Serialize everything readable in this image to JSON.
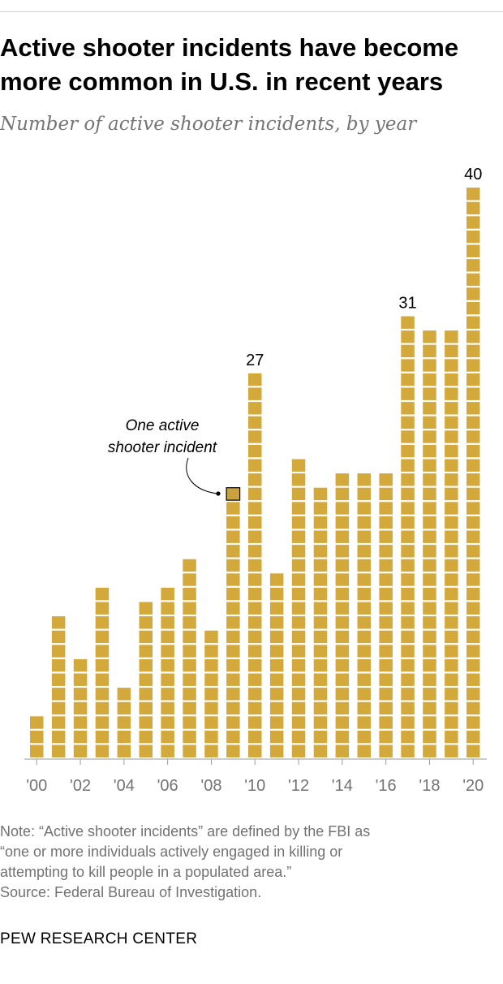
{
  "title_lines": [
    "Active shooter incidents have become",
    "more common in U.S. in recent years"
  ],
  "subtitle": "Number of active shooter incidents, by year",
  "chart_data": {
    "type": "bar",
    "categories": [
      "2000",
      "2001",
      "2002",
      "2003",
      "2004",
      "2005",
      "2006",
      "2007",
      "2008",
      "2009",
      "2010",
      "2011",
      "2012",
      "2013",
      "2014",
      "2015",
      "2016",
      "2017",
      "2018",
      "2019",
      "2020"
    ],
    "tick_labels": [
      "'00",
      "'02",
      "'04",
      "'06",
      "'08",
      "'10",
      "'12",
      "'14",
      "'16",
      "'18",
      "'20"
    ],
    "tick_categories": [
      "2000",
      "2002",
      "2004",
      "2006",
      "2008",
      "2010",
      "2012",
      "2014",
      "2016",
      "2018",
      "2020"
    ],
    "values": [
      3,
      10,
      7,
      12,
      5,
      11,
      12,
      14,
      9,
      19,
      27,
      13,
      21,
      19,
      20,
      20,
      20,
      31,
      30,
      30,
      40
    ],
    "data_labels": [
      {
        "category": "2010",
        "text": "27"
      },
      {
        "category": "2017",
        "text": "31"
      },
      {
        "category": "2020",
        "text": "40"
      }
    ],
    "annotation": {
      "lines": [
        "One active",
        "shooter incident"
      ],
      "category": "2009"
    },
    "ylim": [
      0,
      40
    ],
    "grid": false,
    "bar_color": "#d4a93c",
    "highlight_color": "#c9a23f"
  },
  "notes": [
    "Note: “Active shooter incidents” are defined by the FBI as",
    "“one or more individuals actively engaged in killing or",
    "attempting to kill people in a populated area.”",
    "Source: Federal Bureau of Investigation."
  ],
  "footer": "PEW RESEARCH CENTER"
}
